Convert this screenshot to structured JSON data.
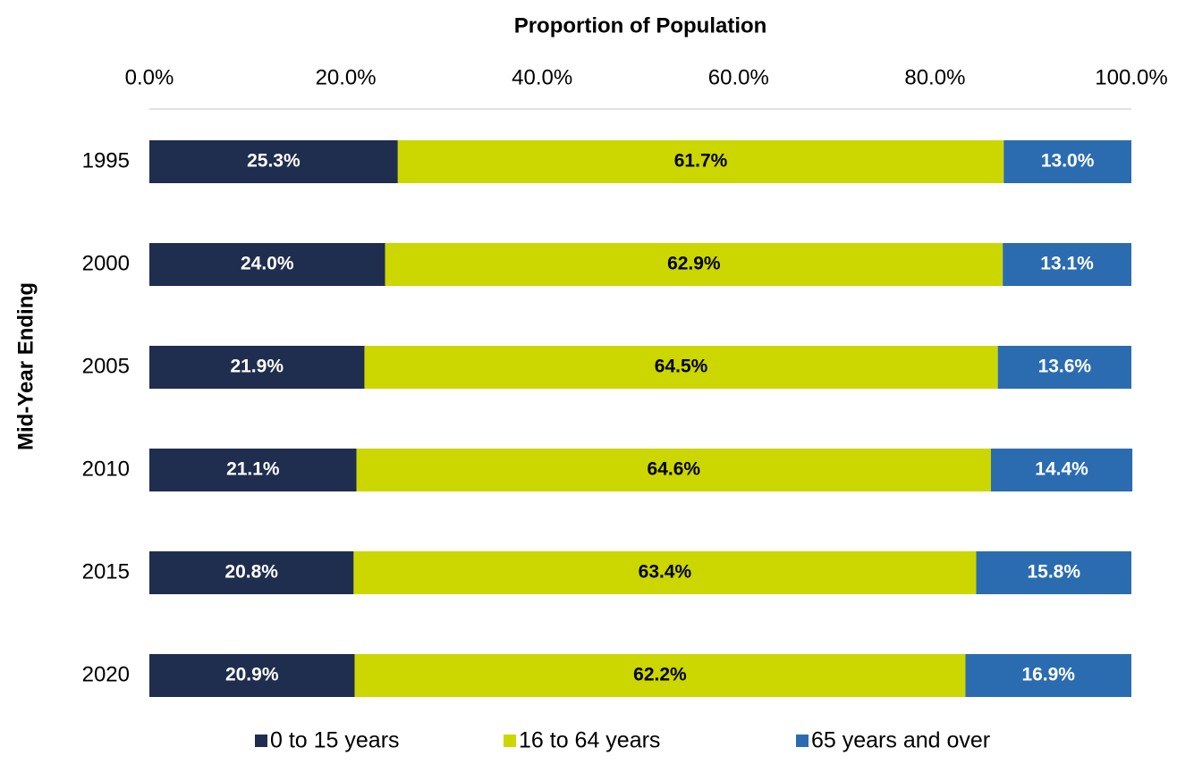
{
  "chart_data": {
    "type": "stacked_bar_horizontal",
    "x_axis_title": "Proportion of Population",
    "y_axis_title": "Mid-Year Ending",
    "categories": [
      "1995",
      "2000",
      "2005",
      "2010",
      "2015",
      "2020"
    ],
    "series": [
      {
        "name": "0 to 15 years",
        "color": "#1f2d4e",
        "values": [
          25.3,
          24.0,
          21.9,
          21.1,
          20.8,
          20.9
        ],
        "value_labels": [
          "25.3%",
          "24.0%",
          "21.9%",
          "21.1%",
          "20.8%",
          "20.9%"
        ]
      },
      {
        "name": "16 to 64 years",
        "color": "#ccd600",
        "values": [
          61.7,
          62.9,
          64.5,
          64.6,
          63.4,
          62.2
        ],
        "value_labels": [
          "61.7%",
          "62.9%",
          "64.5%",
          "64.6%",
          "63.4%",
          "62.2%"
        ]
      },
      {
        "name": "65 years and over",
        "color": "#2b6cb0",
        "values": [
          13.0,
          13.1,
          13.6,
          14.4,
          15.8,
          16.9
        ],
        "value_labels": [
          "13.0%",
          "13.1%",
          "13.6%",
          "14.4%",
          "15.8%",
          "16.9%"
        ]
      }
    ],
    "xlim": [
      0,
      100
    ],
    "xticks": [
      {
        "value": 0,
        "label": "0.0%"
      },
      {
        "value": 20,
        "label": "20.0%"
      },
      {
        "value": 40,
        "label": "40.0%"
      },
      {
        "value": 60,
        "label": "60.0%"
      },
      {
        "value": 80,
        "label": "80.0%"
      },
      {
        "value": 100,
        "label": "100.0%"
      }
    ],
    "legend": "bottom"
  }
}
